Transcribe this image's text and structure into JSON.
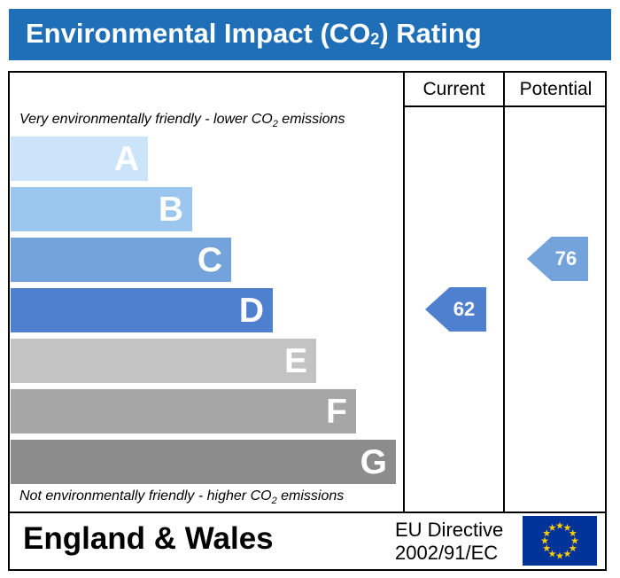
{
  "title": {
    "main": "Environmental Impact (CO",
    "sub": "2",
    "tail": ") Rating"
  },
  "columns": {
    "current": "Current",
    "potential": "Potential"
  },
  "top_note": {
    "before": "Very environmentally friendly - lower CO",
    "sub": "2",
    "after": " emissions"
  },
  "bottom_note": {
    "before": "Not environmentally friendly - higher CO",
    "sub": "2",
    "after": " emissions"
  },
  "bands": [
    {
      "letter": "A",
      "color": "#cce4f9"
    },
    {
      "letter": "B",
      "color": "#9bc6ee"
    },
    {
      "letter": "C",
      "color": "#74a3db"
    },
    {
      "letter": "D",
      "color": "#4f7fcf"
    },
    {
      "letter": "E",
      "color": "#c3c3c3"
    },
    {
      "letter": "F",
      "color": "#a6a6a6"
    },
    {
      "letter": "G",
      "color": "#8c8c8c"
    }
  ],
  "current": {
    "value": "62",
    "band": "D",
    "color": "#4f7fcf"
  },
  "potential": {
    "value": "76",
    "band": "C",
    "color": "#74a3db"
  },
  "footer": {
    "region": "England & Wales",
    "directive_line1": "EU Directive",
    "directive_line2": "2002/91/EC"
  },
  "colors": {
    "title_bg": "#1f6fb8",
    "flag_bg": "#003399",
    "flag_star": "#ffcc00"
  }
}
